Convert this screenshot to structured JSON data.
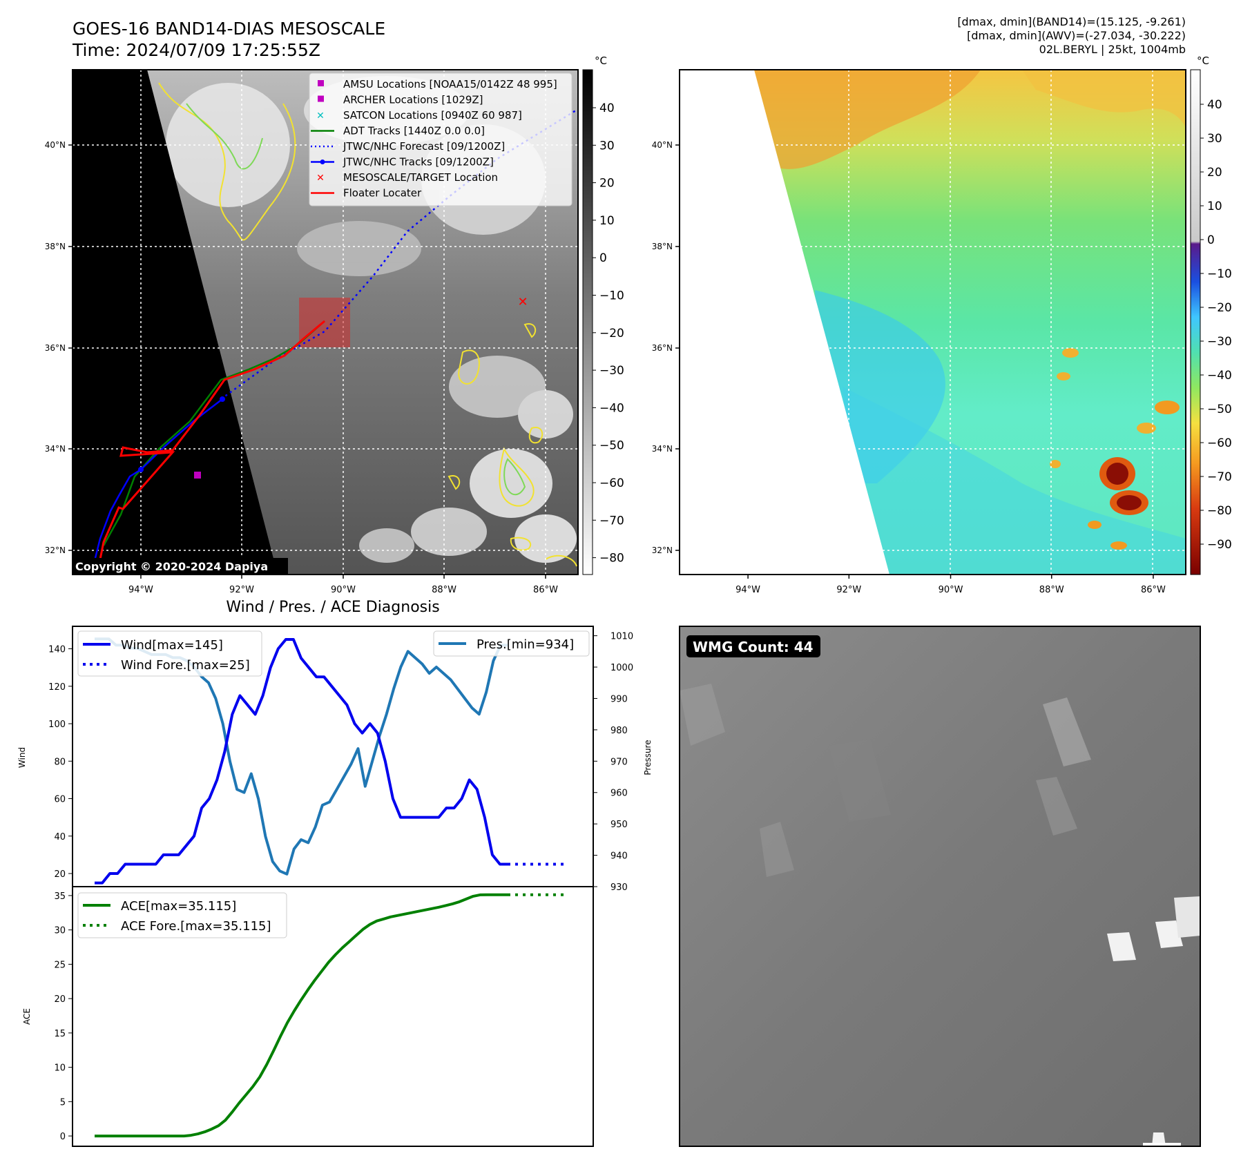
{
  "header": {
    "title_line1": "GOES-16 BAND14-DIAS MESOSCALE",
    "title_line2": "Time: 2024/07/09 17:25:55Z",
    "info_line1": "[dmax, dmin](BAND14)=(15.125, -9.261)",
    "info_line2": "[dmax, dmin](AWV)=(-27.034, -30.222)",
    "info_line3": "02L.BERYL | 25kt, 1004mb"
  },
  "map_axes": {
    "lon_ticks": [
      "94°W",
      "92°W",
      "90°W",
      "88°W",
      "86°W"
    ],
    "lat_ticks": [
      "40°N",
      "38°N",
      "36°N",
      "34°N",
      "32°N"
    ]
  },
  "ir_panel": {
    "copyright": "Copyright © 2020-2024 Dapiya",
    "colorbar_unit": "°C",
    "colorbar_ticks": [
      "40",
      "30",
      "20",
      "10",
      "0",
      "−10",
      "−20",
      "−30",
      "−40",
      "−50",
      "−60",
      "−70",
      "−80"
    ],
    "legend": [
      {
        "label": "AMSU Locations [NOAA15/0142Z 48 995]",
        "symbol": "square",
        "color": "#c000c0"
      },
      {
        "label": "ARCHER Locations [1029Z]",
        "symbol": "square",
        "color": "#c000c0"
      },
      {
        "label": "SATCON Locations [0940Z 60 987]",
        "symbol": "x",
        "color": "#00bfbf"
      },
      {
        "label": "ADT Tracks [1440Z 0.0 0.0]",
        "symbol": "line",
        "color": "#008000"
      },
      {
        "label": "JTWC/NHC Forecast [09/1200Z]",
        "symbol": "dotted",
        "color": "#0000ff"
      },
      {
        "label": "JTWC/NHC Tracks [09/1200Z]",
        "symbol": "line-dot",
        "color": "#0000ff"
      },
      {
        "label": "MESOSCALE/TARGET Location",
        "symbol": "x",
        "color": "#ff0000"
      },
      {
        "label": "Floater Locater",
        "symbol": "line",
        "color": "#ff0000"
      }
    ]
  },
  "enhanced_panel": {
    "colorbar_unit": "°C",
    "colorbar_ticks": [
      "40",
      "30",
      "20",
      "10",
      "0",
      "−10",
      "−20",
      "−30",
      "−40",
      "−50",
      "−60",
      "−70",
      "−80",
      "−90"
    ]
  },
  "wmg_panel": {
    "badge": "WMG Count: 44"
  },
  "chart_data": [
    {
      "type": "line",
      "title": "Wind / Pres. / ACE Diagnosis",
      "ylabel": "Wind",
      "ylim": [
        13,
        152
      ],
      "yticks": [
        20,
        40,
        60,
        80,
        100,
        120,
        140
      ],
      "y2label": "Pressure",
      "y2lim": [
        930,
        1013
      ],
      "y2ticks": [
        930,
        940,
        950,
        960,
        970,
        980,
        990,
        1000,
        1010
      ],
      "grid": false,
      "legend_left": "top-left",
      "legend_right": "top-right",
      "series": [
        {
          "name": "Wind[max=145]",
          "color": "#0000ee",
          "style": "solid",
          "axis": "left",
          "values": [
            15,
            15,
            20,
            20,
            25,
            25,
            25,
            25,
            25,
            30,
            30,
            30,
            35,
            40,
            55,
            60,
            70,
            85,
            105,
            115,
            110,
            105,
            115,
            130,
            140,
            145,
            145,
            135,
            130,
            125,
            125,
            120,
            115,
            110,
            100,
            95,
            100,
            95,
            80,
            60,
            50,
            50,
            50,
            50,
            50,
            50,
            55,
            55,
            60,
            70,
            65,
            50,
            30,
            25,
            25
          ]
        },
        {
          "name": "Wind Fore.[max=25]",
          "color": "#0000ee",
          "style": "dotted",
          "axis": "left",
          "values": [
            25,
            25,
            25,
            25,
            25,
            25,
            25,
            25,
            25
          ]
        },
        {
          "name": "Pres.[min=934]",
          "color": "#1f77b4",
          "style": "solid",
          "axis": "right",
          "values": [
            1009,
            1009,
            1009,
            1007,
            1007,
            1006,
            1006,
            1005,
            1004,
            1004,
            1004,
            1003,
            1003,
            1002,
            1000,
            997,
            995,
            990,
            982,
            970,
            961,
            960,
            966,
            958,
            946,
            938,
            935,
            934,
            942,
            945,
            944,
            949,
            956,
            957,
            961,
            965,
            969,
            974,
            962,
            970,
            978,
            985,
            993,
            1000,
            1005,
            1003,
            1001,
            998,
            1000,
            998,
            996,
            993,
            990,
            987,
            985,
            992,
            1002,
            1007,
            1007
          ]
        },
        {
          "name": "ACE[max=35.115]",
          "color": "#008000",
          "style": "solid",
          "axis": "lower",
          "values": [
            0,
            0,
            0,
            0,
            0,
            0,
            0,
            0,
            0,
            0,
            0,
            0,
            0,
            0,
            0.1,
            0.3,
            0.6,
            1.0,
            1.5,
            2.3,
            3.5,
            4.8,
            6.0,
            7.2,
            8.6,
            10.4,
            12.4,
            14.5,
            16.5,
            18.2,
            19.8,
            21.3,
            22.7,
            24.0,
            25.3,
            26.4,
            27.4,
            28.3,
            29.2,
            30.1,
            30.8,
            31.3,
            31.6,
            31.9,
            32.1,
            32.3,
            32.5,
            32.7,
            32.9,
            33.1,
            33.3,
            33.55,
            33.8,
            34.1,
            34.5,
            34.9,
            35.1,
            35.115,
            35.115,
            35.115,
            35.115
          ]
        },
        {
          "name": "ACE Fore.[max=35.115]",
          "color": "#008000",
          "style": "dotted",
          "axis": "lower",
          "values": [
            35.115,
            35.115,
            35.115,
            35.115,
            35.115,
            35.115,
            35.115,
            35.115,
            35.115
          ]
        }
      ],
      "lower_ylabel": "ACE",
      "lower_ylim": [
        -1.5,
        36.3
      ],
      "lower_yticks": [
        0,
        5,
        10,
        15,
        20,
        25,
        30,
        35
      ]
    }
  ]
}
